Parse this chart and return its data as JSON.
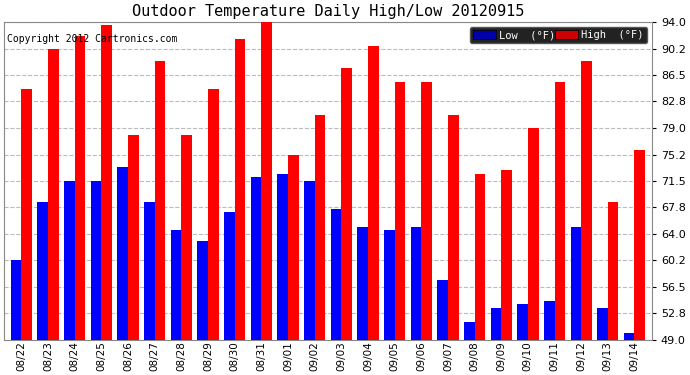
{
  "dates": [
    "08/22",
    "08/23",
    "08/24",
    "08/25",
    "08/26",
    "08/27",
    "08/28",
    "08/29",
    "08/30",
    "08/31",
    "09/01",
    "09/02",
    "09/03",
    "09/04",
    "09/05",
    "09/06",
    "09/07",
    "09/08",
    "09/09",
    "09/10",
    "09/11",
    "09/12",
    "09/13",
    "09/14"
  ],
  "highs": [
    84.5,
    90.2,
    92.0,
    93.5,
    78.0,
    88.5,
    78.0,
    84.5,
    91.5,
    94.0,
    75.2,
    80.8,
    87.5,
    90.5,
    85.5,
    85.5,
    80.8,
    72.5,
    73.0,
    79.0,
    85.5,
    88.5,
    68.5,
    75.8
  ],
  "lows": [
    60.2,
    68.5,
    71.5,
    71.5,
    73.5,
    68.5,
    64.5,
    63.0,
    67.0,
    72.0,
    72.5,
    71.5,
    67.5,
    65.0,
    64.5,
    65.0,
    57.5,
    51.5,
    53.5,
    54.0,
    54.5,
    65.0,
    53.5,
    50.0
  ],
  "high_color": "#ff0000",
  "low_color": "#0000ff",
  "title": "Outdoor Temperature Daily High/Low 20120915",
  "copyright": "Copyright 2012 Cartronics.com",
  "ytick_values": [
    49.0,
    52.8,
    56.5,
    60.2,
    64.0,
    67.8,
    71.5,
    75.2,
    79.0,
    82.8,
    86.5,
    90.2,
    94.0
  ],
  "ytick_labels": [
    "49.0",
    "52.8",
    "56.5",
    "60.2",
    "64.0",
    "67.8",
    "71.5",
    "75.2",
    "79.0",
    "82.8",
    "86.5",
    "90.2",
    "94.0"
  ],
  "ymin": 49.0,
  "ymax": 94.0,
  "background_color": "#ffffff",
  "grid_color": "#bbbbbb",
  "bar_width": 0.4,
  "legend_low_bg": "#0000aa",
  "legend_high_bg": "#cc0000",
  "legend_text_color": "#ffffff",
  "title_fontsize": 11,
  "copyright_fontsize": 7,
  "tick_fontsize": 8,
  "xtick_fontsize": 7.5
}
